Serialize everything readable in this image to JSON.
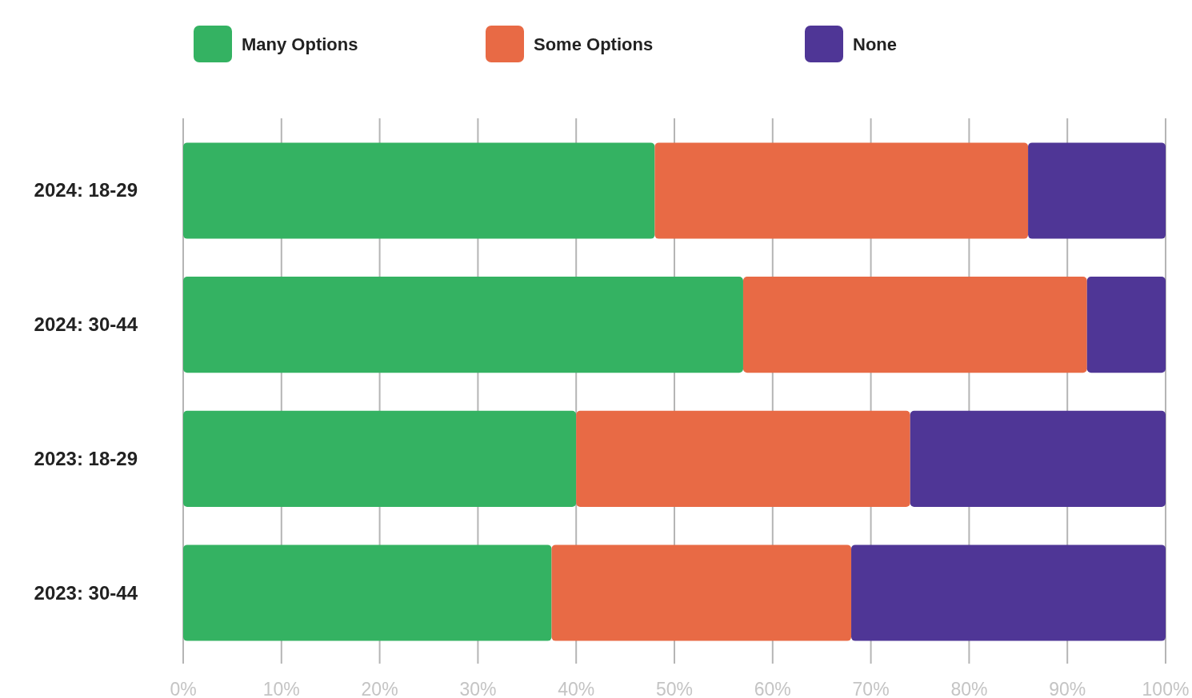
{
  "chart_data": {
    "type": "bar",
    "orientation": "horizontal",
    "stacked": true,
    "categories": [
      "2024: 18-29",
      "2024: 30-44",
      "2023: 18-29",
      "2023: 30-44"
    ],
    "series": [
      {
        "name": "Many Options",
        "color": "#34b262",
        "values": [
          48,
          57,
          40,
          37.5
        ]
      },
      {
        "name": "Some Options",
        "color": "#e86a45",
        "values": [
          38,
          35,
          34,
          30.5
        ]
      },
      {
        "name": "None",
        "color": "#4f3696",
        "values": [
          14,
          8,
          26,
          32
        ]
      }
    ],
    "xlim": [
      0,
      100
    ],
    "xticks": [
      {
        "value": 0,
        "label": "0%"
      },
      {
        "value": 10,
        "label": "10%"
      },
      {
        "value": 20,
        "label": "20%"
      },
      {
        "value": 30,
        "label": "30%"
      },
      {
        "value": 40,
        "label": "40%"
      },
      {
        "value": 50,
        "label": "50%"
      },
      {
        "value": 60,
        "label": "60%"
      },
      {
        "value": 70,
        "label": "70%"
      },
      {
        "value": 80,
        "label": "80%"
      },
      {
        "value": 90,
        "label": "90%"
      },
      {
        "value": 100,
        "label": "100%"
      }
    ],
    "grid": "x",
    "legend": "top"
  }
}
